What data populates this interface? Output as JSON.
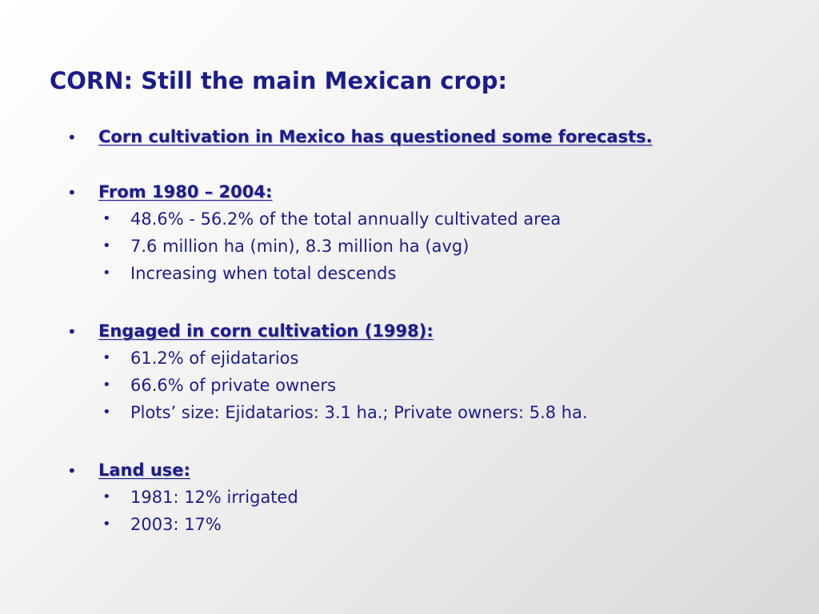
{
  "slide": {
    "title": "CORN: Still the main Mexican crop:",
    "bullet_glyph": "•",
    "items": [
      {
        "label": "Corn cultivation in Mexico has questioned some forecasts.",
        "subitems": []
      },
      {
        "label": "From 1980 – 2004:",
        "subitems": [
          "48.6% - 56.2% of the total annually cultivated area",
          "7.6 million ha (min), 8.3 million ha (avg)",
          "Increasing when total descends"
        ]
      },
      {
        "label": "Engaged in corn cultivation (1998):",
        "subitems": [
          "61.2% of ejidatarios",
          "66.6% of private owners",
          "Plots’ size: Ejidatarios: 3.1 ha.; Private owners: 5.8 ha."
        ]
      },
      {
        "label": "Land use:",
        "subitems": [
          "1981: 12% irrigated",
          "2003: 17%"
        ]
      }
    ]
  },
  "colors": {
    "text": "#1c1c8c",
    "background_light": "#ffffff",
    "background_dark": "#d9d9d9"
  }
}
